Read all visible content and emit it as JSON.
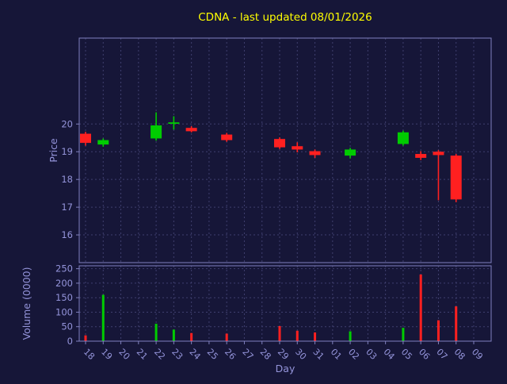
{
  "figure": {
    "background": "#161638"
  },
  "chart_data": {
    "type": "candlestick",
    "title": "CDNA - last updated 08/01/2026",
    "xlabel": "Day",
    "x_ticklabels": [
      "18",
      "19",
      "20",
      "21",
      "22",
      "23",
      "24",
      "25",
      "26",
      "27",
      "28",
      "29",
      "30",
      "31",
      "01",
      "02",
      "03",
      "04",
      "05",
      "06",
      "07",
      "08",
      "09"
    ],
    "grid": true,
    "legend": "none",
    "colors": {
      "background": "#161638",
      "up": "#00cc00",
      "down": "#ff2020",
      "grid": "#3f3f6e",
      "axis": "#8080bf",
      "label": "#9494da",
      "title": "#ffff00"
    },
    "price": {
      "ylabel": "Price",
      "yticks": [
        16,
        17,
        18,
        19,
        20
      ],
      "ylim": [
        15.0,
        23.1
      ]
    },
    "volume": {
      "ylabel": "Volume (0000)",
      "yticks": [
        0,
        50,
        100,
        150,
        200,
        250
      ],
      "ylim": [
        0,
        260
      ]
    },
    "candles": [
      {
        "day": "18",
        "open": 19.65,
        "high": 19.72,
        "low": 19.22,
        "close": 19.32,
        "volume": 20
      },
      {
        "day": "19",
        "open": 19.26,
        "high": 19.48,
        "low": 19.18,
        "close": 19.42,
        "volume": 160
      },
      {
        "day": "22",
        "open": 19.48,
        "high": 20.42,
        "low": 19.4,
        "close": 19.95,
        "volume": 60
      },
      {
        "day": "23",
        "open": 20.05,
        "high": 20.28,
        "low": 19.8,
        "close": 20.06,
        "volume": 40
      },
      {
        "day": "24",
        "open": 19.86,
        "high": 19.92,
        "low": 19.7,
        "close": 19.74,
        "volume": 28
      },
      {
        "day": "26",
        "open": 19.62,
        "high": 19.68,
        "low": 19.36,
        "close": 19.42,
        "volume": 26
      },
      {
        "day": "29",
        "open": 19.46,
        "high": 19.52,
        "low": 19.1,
        "close": 19.16,
        "volume": 52
      },
      {
        "day": "30",
        "open": 19.2,
        "high": 19.34,
        "low": 18.98,
        "close": 19.08,
        "volume": 36
      },
      {
        "day": "31",
        "open": 19.02,
        "high": 19.08,
        "low": 18.78,
        "close": 18.88,
        "volume": 30
      },
      {
        "day": "02",
        "open": 18.86,
        "high": 19.14,
        "low": 18.76,
        "close": 19.08,
        "volume": 34
      },
      {
        "day": "05",
        "open": 19.28,
        "high": 19.76,
        "low": 19.22,
        "close": 19.7,
        "volume": 46
      },
      {
        "day": "06",
        "open": 18.92,
        "high": 19.02,
        "low": 18.7,
        "close": 18.78,
        "volume": 230
      },
      {
        "day": "07",
        "open": 19.0,
        "high": 19.06,
        "low": 17.25,
        "close": 18.88,
        "volume": 72
      },
      {
        "day": "08",
        "open": 18.86,
        "high": 18.92,
        "low": 17.18,
        "close": 17.28,
        "volume": 120
      }
    ]
  }
}
